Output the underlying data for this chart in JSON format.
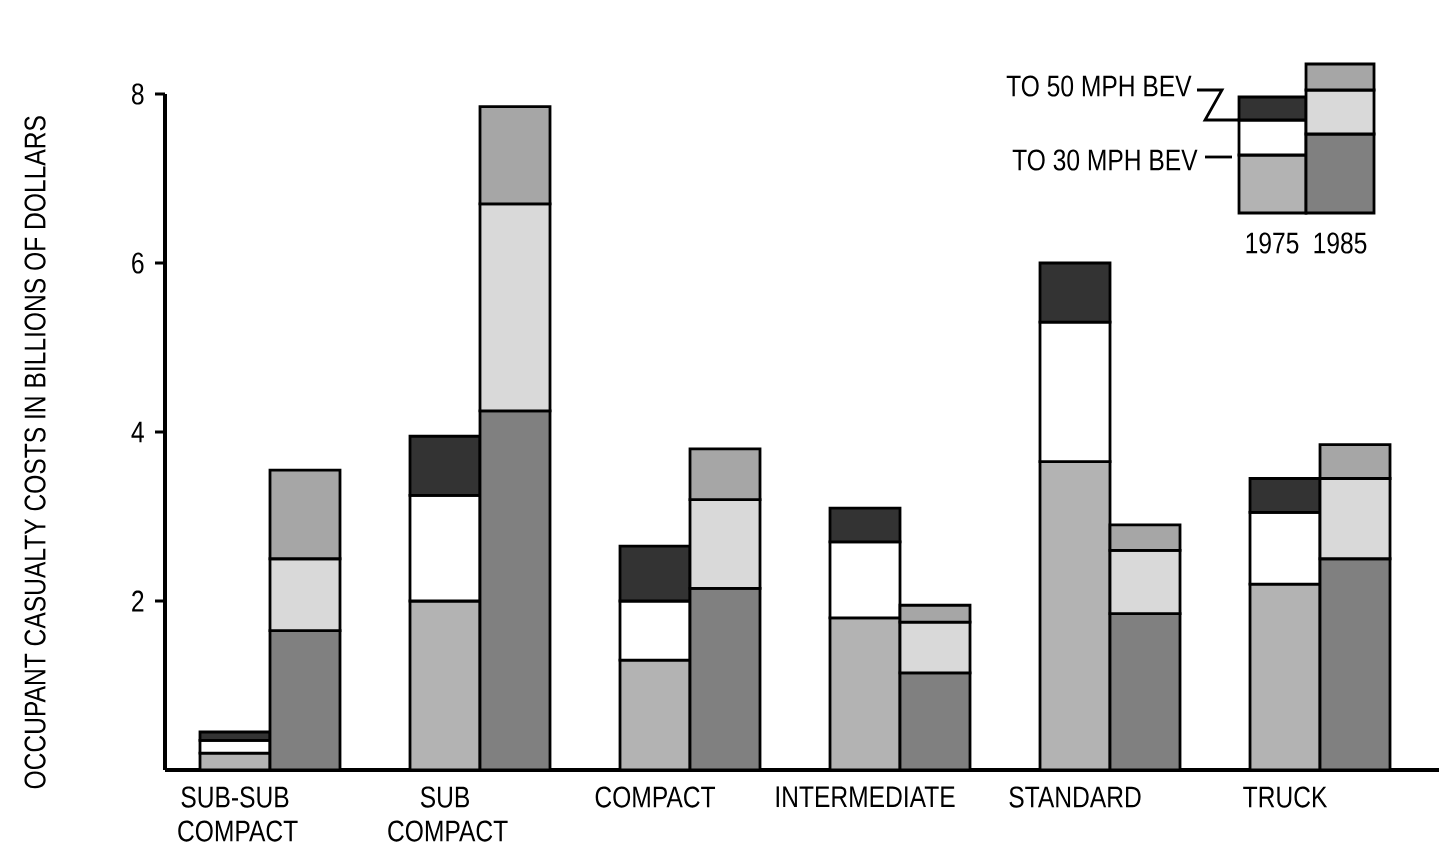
{
  "chart_data": {
    "type": "bar",
    "stacked": true,
    "ylabel": "OCCUPANT CASUALTY COSTS IN BILLIONS OF DOLLARS",
    "categories": [
      "SUB-SUB COMPACT",
      null,
      null,
      "SUB COMPACT",
      null,
      null,
      "COMPACT",
      null,
      null,
      "INTERMEDIATE",
      null,
      null,
      "STANDARD",
      null,
      null,
      "TRUCK",
      null
    ],
    "ylim": [
      0,
      8
    ],
    "yticks": [
      2,
      4,
      6,
      8
    ],
    "annotations": [
      "TO 50 MPH BEV",
      "TO 30 MPH BEV",
      "1975",
      "1985"
    ],
    "series": [
      {
        "color": "#b3b3b3",
        "values": [
          0.2,
          null,
          null,
          2.0,
          null,
          null,
          1.3,
          null,
          null,
          1.8,
          null,
          null,
          3.65,
          null,
          null,
          2.2,
          null
        ]
      },
      {
        "color": "#ffffff",
        "values": [
          0.15,
          null,
          null,
          1.25,
          null,
          null,
          0.7,
          null,
          null,
          0.9,
          null,
          null,
          1.65,
          null,
          null,
          0.85,
          null
        ]
      },
      {
        "color": "#333333",
        "values": [
          0.1,
          null,
          null,
          0.7,
          null,
          null,
          0.65,
          null,
          null,
          0.4,
          null,
          null,
          0.7,
          null,
          null,
          0.4,
          null
        ]
      },
      {
        "color": "#808080",
        "values": [
          null,
          1.65,
          null,
          null,
          4.25,
          null,
          null,
          2.15,
          null,
          null,
          1.15,
          null,
          null,
          1.85,
          null,
          null,
          2.5
        ]
      },
      {
        "color": "#d9d9d9",
        "values": [
          null,
          0.85,
          null,
          null,
          2.45,
          null,
          null,
          1.05,
          null,
          null,
          0.6,
          null,
          null,
          0.75,
          null,
          null,
          0.95
        ]
      },
      {
        "color": "#a6a6a6",
        "values": [
          null,
          1.05,
          null,
          null,
          1.15,
          null,
          null,
          0.6,
          null,
          null,
          0.2,
          null,
          null,
          0.3,
          null,
          null,
          0.4
        ]
      }
    ]
  }
}
